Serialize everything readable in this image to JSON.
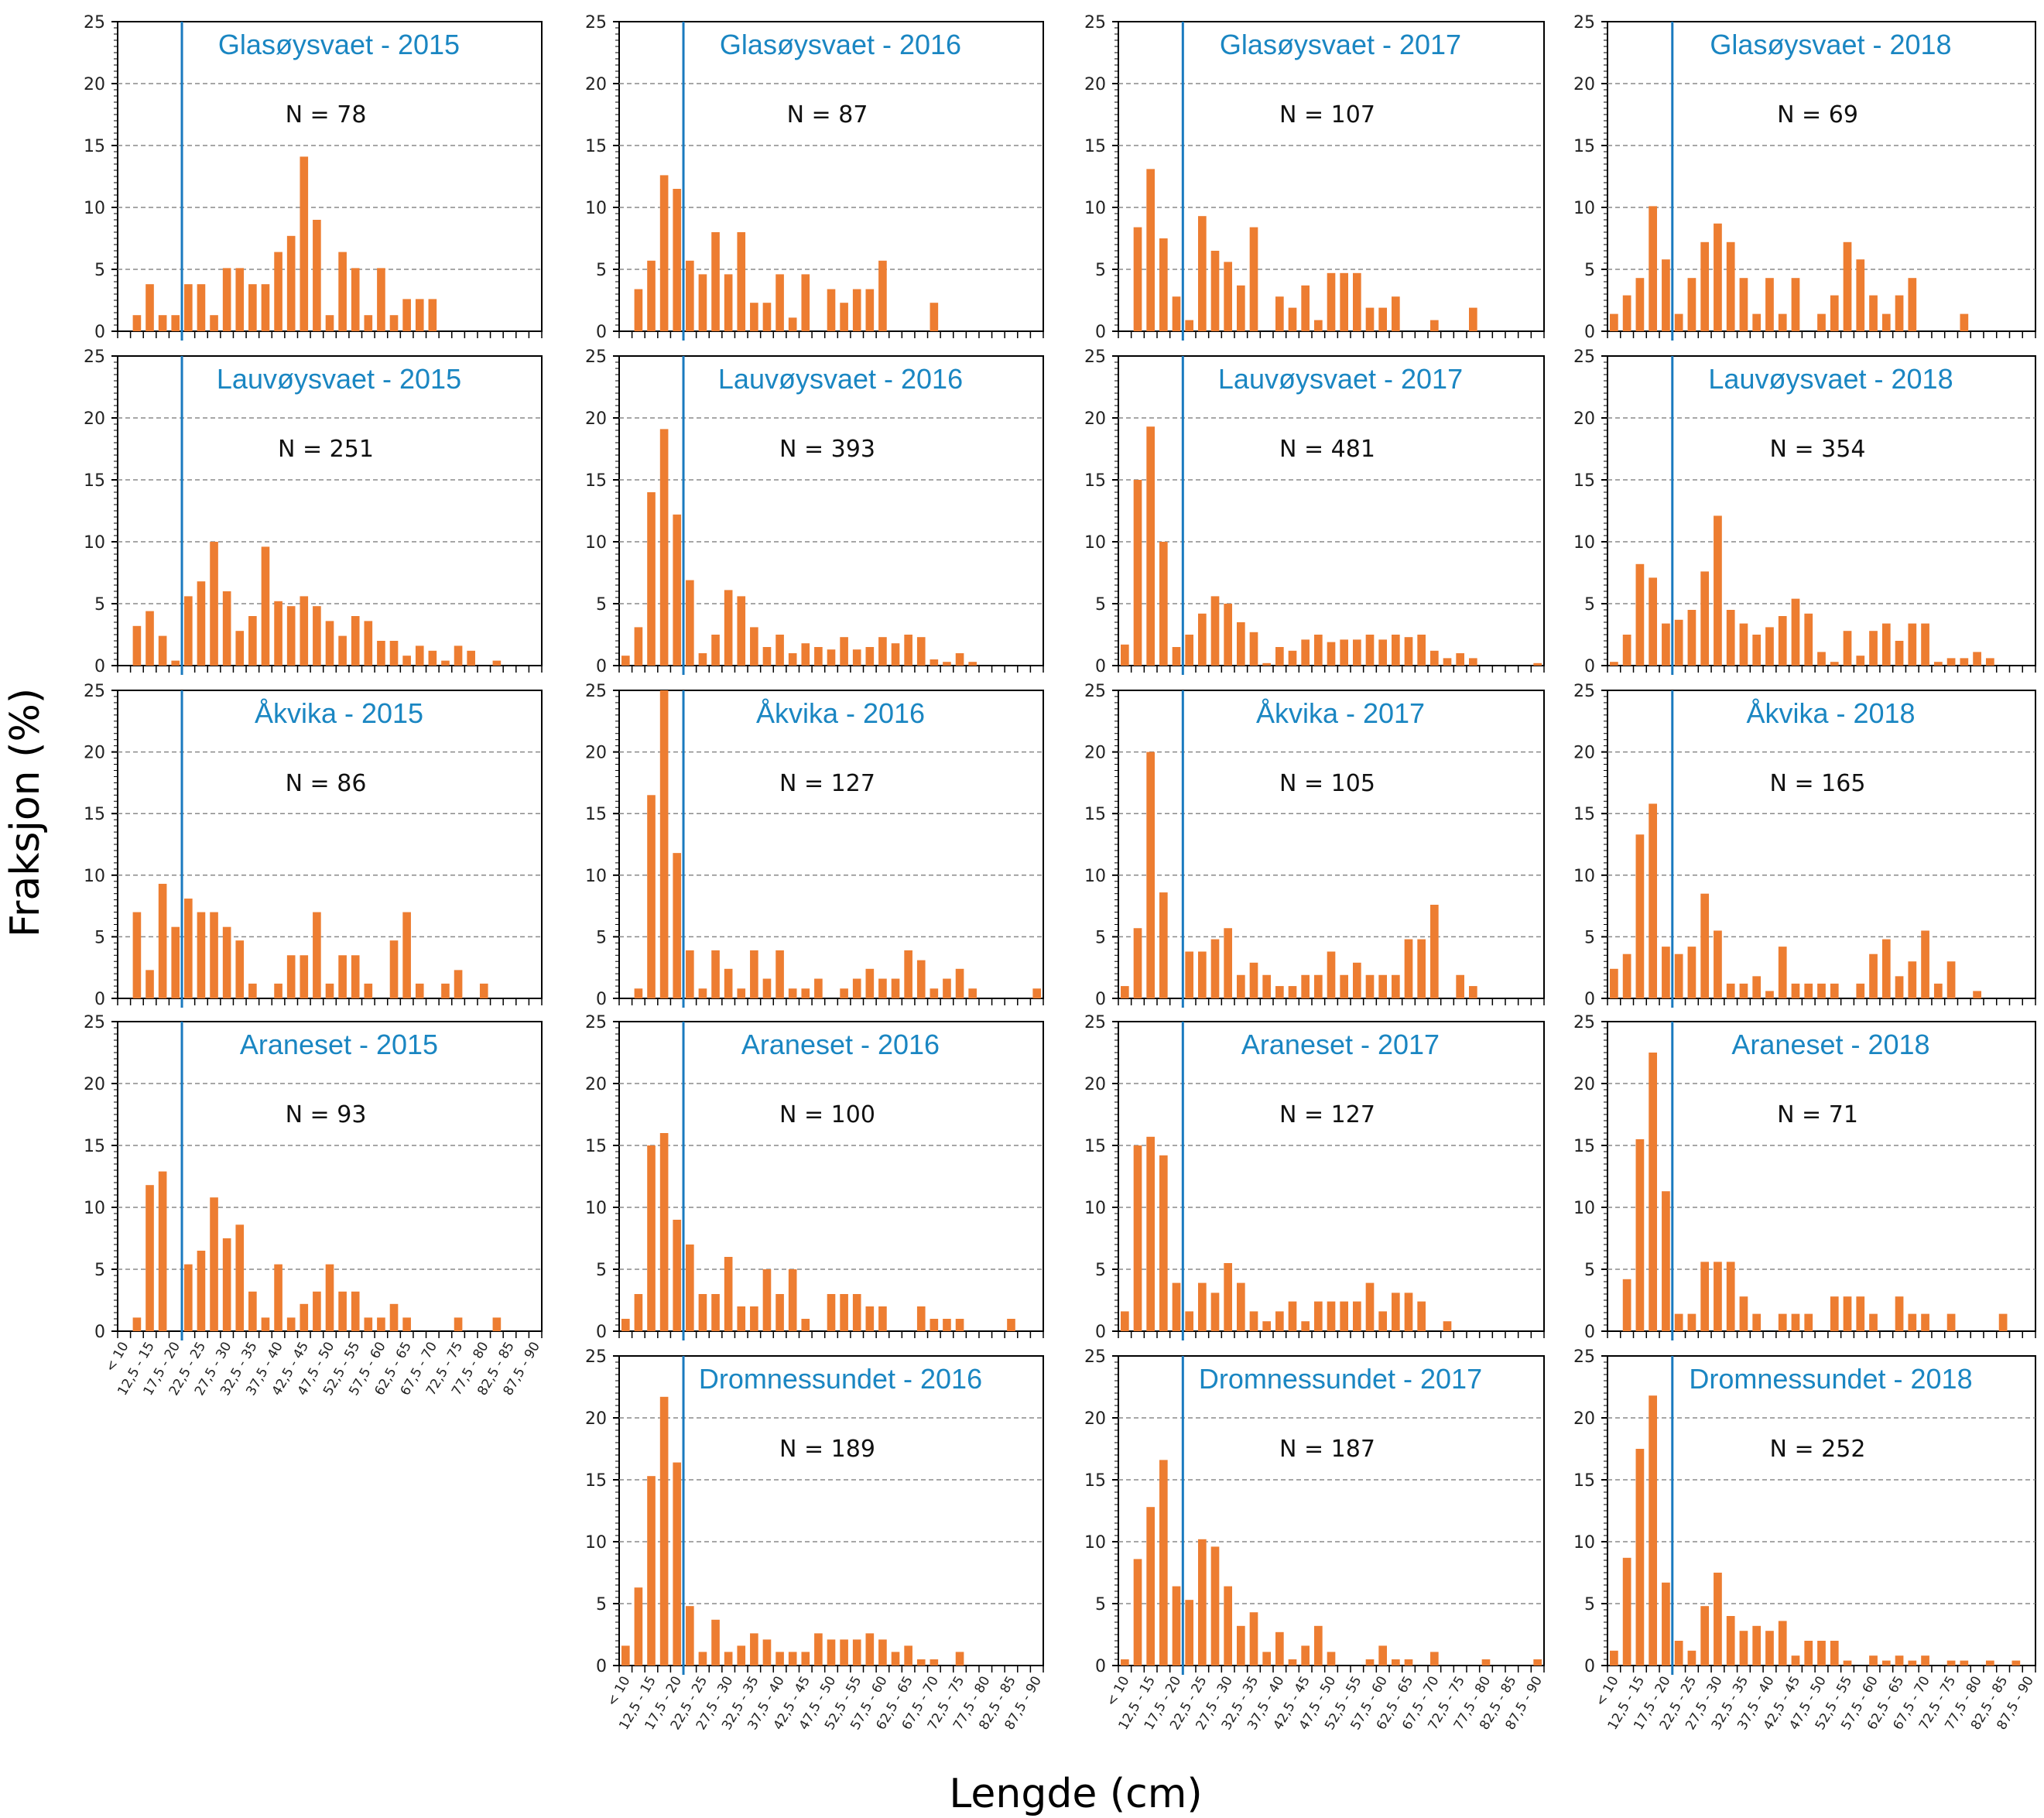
{
  "chart_data": {
    "type": "bar",
    "title": "",
    "xlabel": "Lengde (cm)",
    "ylabel": "Fraksjon (%)",
    "ylim": [
      0,
      25
    ],
    "yticks": [
      0,
      5,
      10,
      15,
      20,
      25
    ],
    "grid": "horizontal dashed at 5, 10, 15, 20",
    "reference_line_cm": 20,
    "bar_color": "#ed7d31",
    "title_color": "#1a86c2",
    "line_color": "#1a7abf",
    "categories": [
      "< 10",
      "10 - 12,5",
      "12,5 - 15",
      "15 - 17,5",
      "17,5 - 20",
      "20 - 22,5",
      "22,5 - 25",
      "25 - 27,5",
      "27,5 - 30",
      "30 - 32,5",
      "32,5 - 35",
      "35 - 37,5",
      "37,5 - 40",
      "40 - 42,5",
      "42,5 - 45",
      "45 - 47,5",
      "47,5 - 50",
      "50 - 52,5",
      "52,5 - 55",
      "55 - 57,5",
      "57,5 - 60",
      "60 - 62,5",
      "62,5 - 65",
      "65 - 67,5",
      "67,5 - 70",
      "70 - 72,5",
      "72,5 - 75",
      "75 - 77,5",
      "77,5 - 80",
      "80 - 82,5",
      "82,5 - 85",
      "85 - 87,5",
      "87,5 - 90"
    ],
    "xtick_labels": [
      "< 10",
      "12,5 - 15",
      "17,5 - 20",
      "22,5 - 25",
      "27,5 - 30",
      "32,5 - 35",
      "37,5 - 40",
      "42,5 - 45",
      "47,5 - 50",
      "52,5 - 55",
      "57,5 - 60",
      "62,5 - 65",
      "67,5 - 70",
      "72,5 - 75",
      "77,5 - 80",
      "82,5 - 85",
      "87,5 - 90"
    ],
    "panels": [
      {
        "site": "Glasøysvaet",
        "year": "2015",
        "title": "Glasøysvaet - 2015",
        "n_label": "N = 78",
        "row": 0,
        "col": 0,
        "show_xticks": false,
        "values": [
          0,
          1.3,
          3.8,
          1.3,
          1.3,
          3.8,
          3.8,
          1.3,
          5.1,
          5.1,
          3.8,
          3.8,
          6.4,
          7.7,
          14.1,
          9.0,
          1.3,
          6.4,
          5.1,
          1.3,
          5.1,
          1.3,
          2.6,
          2.6,
          2.6,
          0,
          0,
          0,
          0,
          0,
          0,
          0,
          0
        ]
      },
      {
        "site": "Glasøysvaet",
        "year": "2016",
        "title": "Glasøysvaet - 2016",
        "n_label": "N = 87",
        "row": 0,
        "col": 1,
        "show_xticks": false,
        "values": [
          0,
          3.4,
          5.7,
          12.6,
          11.5,
          5.7,
          4.6,
          8.0,
          4.6,
          8.0,
          2.3,
          2.3,
          4.6,
          1.1,
          4.6,
          0,
          3.4,
          2.3,
          3.4,
          3.4,
          5.7,
          0,
          0,
          0,
          2.3,
          0,
          0,
          0,
          0,
          0,
          0,
          0,
          0
        ]
      },
      {
        "site": "Glasøysvaet",
        "year": "2017",
        "title": "Glasøysvaet - 2017",
        "n_label": "N = 107",
        "row": 0,
        "col": 2,
        "show_xticks": false,
        "values": [
          0,
          8.4,
          13.1,
          7.5,
          2.8,
          0.9,
          9.3,
          6.5,
          5.6,
          3.7,
          8.4,
          0,
          2.8,
          1.9,
          3.7,
          0.9,
          4.7,
          4.7,
          4.7,
          1.9,
          1.9,
          2.8,
          0,
          0,
          0.9,
          0,
          0,
          1.9,
          0,
          0,
          0,
          0,
          0
        ]
      },
      {
        "site": "Glasøysvaet",
        "year": "2018",
        "title": "Glasøysvaet - 2018",
        "n_label": "N = 69",
        "row": 0,
        "col": 3,
        "show_xticks": false,
        "values": [
          1.4,
          2.9,
          4.3,
          10.1,
          5.8,
          1.4,
          4.3,
          7.2,
          8.7,
          7.2,
          4.3,
          1.4,
          4.3,
          1.4,
          4.3,
          0,
          1.4,
          2.9,
          7.2,
          5.8,
          2.9,
          1.4,
          2.9,
          4.3,
          0,
          0,
          0,
          1.4,
          0,
          0,
          0,
          0,
          0
        ]
      },
      {
        "site": "Lauvøysvaet",
        "year": "2015",
        "title": "Lauvøysvaet - 2015",
        "n_label": "N = 251",
        "row": 1,
        "col": 0,
        "show_xticks": false,
        "values": [
          0,
          3.2,
          4.4,
          2.4,
          0.4,
          5.6,
          6.8,
          10.0,
          6.0,
          2.8,
          4.0,
          9.6,
          5.2,
          4.8,
          5.6,
          4.8,
          3.6,
          2.4,
          4.0,
          3.6,
          2.0,
          2.0,
          0.8,
          1.6,
          1.2,
          0.4,
          1.6,
          1.2,
          0,
          0.4,
          0,
          0,
          0
        ]
      },
      {
        "site": "Lauvøysvaet",
        "year": "2016",
        "title": "Lauvøysvaet - 2016",
        "n_label": "N = 393",
        "row": 1,
        "col": 1,
        "show_xticks": false,
        "values": [
          0.8,
          3.1,
          14.0,
          19.1,
          12.2,
          6.9,
          1.0,
          2.5,
          6.1,
          5.6,
          3.1,
          1.5,
          2.5,
          1.0,
          1.8,
          1.5,
          1.3,
          2.3,
          1.3,
          1.5,
          2.3,
          1.8,
          2.5,
          2.3,
          0.5,
          0.3,
          1.0,
          0.3,
          0,
          0,
          0,
          0,
          0
        ]
      },
      {
        "site": "Lauvøysvaet",
        "year": "2017",
        "title": "Lauvøysvaet - 2017",
        "n_label": "N = 481",
        "row": 1,
        "col": 2,
        "show_xticks": false,
        "values": [
          1.7,
          15.0,
          19.3,
          10.0,
          1.5,
          2.5,
          4.2,
          5.6,
          5.0,
          3.5,
          2.7,
          0.2,
          1.5,
          1.2,
          2.1,
          2.5,
          1.9,
          2.1,
          2.1,
          2.5,
          2.1,
          2.5,
          2.3,
          2.5,
          1.2,
          0.6,
          1.0,
          0.6,
          0,
          0,
          0,
          0,
          0.2
        ]
      },
      {
        "site": "Lauvøysvaet",
        "year": "2018",
        "title": "Lauvøysvaet - 2018",
        "n_label": "N = 354",
        "row": 1,
        "col": 3,
        "show_xticks": false,
        "values": [
          0.3,
          2.5,
          8.2,
          7.1,
          3.4,
          3.7,
          4.5,
          7.6,
          12.1,
          4.5,
          3.4,
          2.5,
          3.1,
          4.0,
          5.4,
          4.2,
          1.1,
          0.3,
          2.8,
          0.8,
          2.8,
          3.4,
          2.0,
          3.4,
          3.4,
          0.3,
          0.6,
          0.6,
          1.1,
          0.6,
          0,
          0,
          0
        ]
      },
      {
        "site": "Åkvika",
        "year": "2015",
        "title": "Åkvika - 2015",
        "n_label": "N = 86",
        "row": 2,
        "col": 0,
        "show_xticks": false,
        "values": [
          0,
          7.0,
          2.3,
          9.3,
          5.8,
          8.1,
          7.0,
          7.0,
          5.8,
          4.7,
          1.2,
          0,
          1.2,
          3.5,
          3.5,
          7.0,
          1.2,
          3.5,
          3.5,
          1.2,
          0,
          4.7,
          7.0,
          1.2,
          0,
          1.2,
          2.3,
          0,
          1.2,
          0,
          0,
          0,
          0
        ]
      },
      {
        "site": "Åkvika",
        "year": "2016",
        "title": "Åkvika - 2016",
        "n_label": "N = 127",
        "row": 2,
        "col": 1,
        "show_xticks": false,
        "values": [
          0,
          0.8,
          16.5,
          26.8,
          11.8,
          3.9,
          0.8,
          3.9,
          2.4,
          0.8,
          3.9,
          1.6,
          3.9,
          0.8,
          0.8,
          1.6,
          0,
          0.8,
          1.6,
          2.4,
          1.6,
          1.6,
          3.9,
          3.1,
          0.8,
          1.6,
          2.4,
          0.8,
          0,
          0,
          0,
          0,
          0.8
        ]
      },
      {
        "site": "Åkvika",
        "year": "2017",
        "title": "Åkvika - 2017",
        "n_label": "N = 105",
        "row": 2,
        "col": 2,
        "show_xticks": false,
        "values": [
          1.0,
          5.7,
          20.0,
          8.6,
          0,
          3.8,
          3.8,
          4.8,
          5.7,
          1.9,
          2.9,
          1.9,
          1.0,
          1.0,
          1.9,
          1.9,
          3.8,
          1.9,
          2.9,
          1.9,
          1.9,
          1.9,
          4.8,
          4.8,
          7.6,
          0,
          1.9,
          1.0,
          0,
          0,
          0,
          0,
          0
        ]
      },
      {
        "site": "Åkvika",
        "year": "2018",
        "title": "Åkvika - 2018",
        "n_label": "N = 165",
        "row": 2,
        "col": 3,
        "show_xticks": false,
        "values": [
          2.4,
          3.6,
          13.3,
          15.8,
          4.2,
          3.6,
          4.2,
          8.5,
          5.5,
          1.2,
          1.2,
          1.8,
          0.6,
          4.2,
          1.2,
          1.2,
          1.2,
          1.2,
          0,
          1.2,
          3.6,
          4.8,
          1.8,
          3.0,
          5.5,
          1.2,
          3.0,
          0,
          0.6,
          0,
          0,
          0,
          0
        ]
      },
      {
        "site": "Araneset",
        "year": "2015",
        "title": "Araneset - 2015",
        "n_label": "N = 93",
        "row": 3,
        "col": 0,
        "show_xticks": true,
        "values": [
          0,
          1.1,
          11.8,
          12.9,
          0,
          5.4,
          6.5,
          10.8,
          7.5,
          8.6,
          3.2,
          1.1,
          5.4,
          1.1,
          2.2,
          3.2,
          5.4,
          3.2,
          3.2,
          1.1,
          1.1,
          2.2,
          1.1,
          0,
          0,
          0,
          1.1,
          0,
          0,
          1.1,
          0,
          0,
          0
        ]
      },
      {
        "site": "Araneset",
        "year": "2016",
        "title": "Araneset - 2016",
        "n_label": "N = 100",
        "row": 3,
        "col": 1,
        "show_xticks": false,
        "values": [
          1,
          3,
          15,
          16,
          9,
          7,
          3,
          3,
          6,
          2,
          2,
          5,
          3,
          5,
          1,
          0,
          3,
          3,
          3,
          2,
          2,
          0,
          0,
          2,
          1,
          1,
          1,
          0,
          0,
          0,
          1,
          0,
          0
        ]
      },
      {
        "site": "Araneset",
        "year": "2017",
        "title": "Araneset - 2017",
        "n_label": "N = 127",
        "row": 3,
        "col": 2,
        "show_xticks": false,
        "values": [
          1.6,
          15.0,
          15.7,
          14.2,
          3.9,
          1.6,
          3.9,
          3.1,
          5.5,
          3.9,
          1.6,
          0.8,
          1.6,
          2.4,
          0.8,
          2.4,
          2.4,
          2.4,
          2.4,
          3.9,
          1.6,
          3.1,
          3.1,
          2.4,
          0,
          0.8,
          0,
          0,
          0,
          0,
          0,
          0,
          0
        ]
      },
      {
        "site": "Araneset",
        "year": "2018",
        "title": "Araneset - 2018",
        "n_label": "N = 71",
        "row": 3,
        "col": 3,
        "show_xticks": false,
        "values": [
          0,
          4.2,
          15.5,
          22.5,
          11.3,
          1.4,
          1.4,
          5.6,
          5.6,
          5.6,
          2.8,
          1.4,
          0,
          1.4,
          1.4,
          1.4,
          0,
          2.8,
          2.8,
          2.8,
          1.4,
          0,
          2.8,
          1.4,
          1.4,
          0,
          1.4,
          0,
          0,
          0,
          1.4,
          0,
          0
        ]
      },
      {
        "site": "Dromnessundet",
        "year": "2016",
        "title": "Dromnessundet - 2016",
        "n_label": "N = 189",
        "row": 4,
        "col": 1,
        "show_xticks": true,
        "values": [
          1.6,
          6.3,
          15.3,
          21.7,
          16.4,
          4.8,
          1.1,
          3.7,
          1.1,
          1.6,
          2.6,
          2.1,
          1.1,
          1.1,
          1.1,
          2.6,
          2.1,
          2.1,
          2.1,
          2.6,
          2.1,
          1.1,
          1.6,
          0.5,
          0.5,
          0,
          1.1,
          0,
          0,
          0,
          0,
          0,
          0
        ]
      },
      {
        "site": "Dromnessundet",
        "year": "2017",
        "title": "Dromnessundet - 2017",
        "n_label": "N = 187",
        "row": 4,
        "col": 2,
        "show_xticks": true,
        "values": [
          0.5,
          8.6,
          12.8,
          16.6,
          6.4,
          5.3,
          10.2,
          9.6,
          6.4,
          3.2,
          4.3,
          1.1,
          2.7,
          0.5,
          1.6,
          3.2,
          1.1,
          0,
          0,
          0.5,
          1.6,
          0.5,
          0.5,
          0,
          1.1,
          0,
          0,
          0,
          0.5,
          0,
          0,
          0,
          0.5
        ]
      },
      {
        "site": "Dromnessundet",
        "year": "2018",
        "title": "Dromnessundet - 2018",
        "n_label": "N = 252",
        "row": 4,
        "col": 3,
        "show_xticks": true,
        "values": [
          1.2,
          8.7,
          17.5,
          21.8,
          6.7,
          2.0,
          1.2,
          4.8,
          7.5,
          4.0,
          2.8,
          3.2,
          2.8,
          3.6,
          0.8,
          2.0,
          2.0,
          2.0,
          0.4,
          0,
          0.8,
          0.4,
          0.8,
          0.4,
          0.8,
          0,
          0.4,
          0.4,
          0,
          0.4,
          0,
          0.4,
          0
        ]
      }
    ]
  }
}
